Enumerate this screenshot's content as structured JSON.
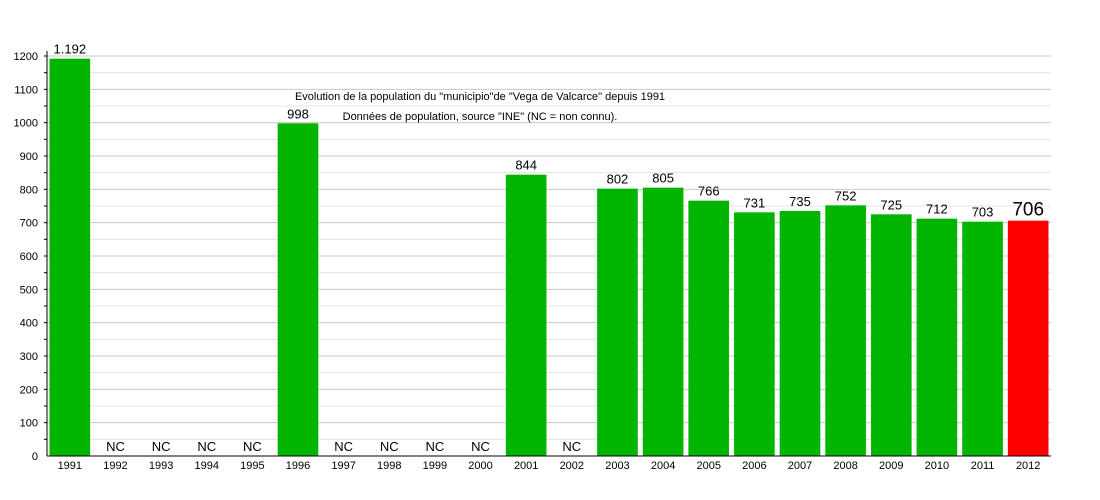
{
  "chart_data": {
    "type": "bar",
    "title": "Evolution de la population du \"municipio\"de \"Vega de Valcarce\" depuis 1991",
    "subtitle": "Données de population, source \"INE\" (NC = non connu).",
    "xlabel": "",
    "ylabel": "",
    "ylim": [
      0,
      1200
    ],
    "yticks": [
      0,
      100,
      200,
      300,
      400,
      500,
      600,
      700,
      800,
      900,
      1000,
      1100,
      1200
    ],
    "grid": true,
    "legend": "none",
    "categories": [
      "1991",
      "1992",
      "1993",
      "1994",
      "1995",
      "1996",
      "1997",
      "1998",
      "1999",
      "2000",
      "2001",
      "2002",
      "2003",
      "2004",
      "2005",
      "2006",
      "2007",
      "2008",
      "2009",
      "2010",
      "2011",
      "2012"
    ],
    "values": [
      1192,
      null,
      null,
      null,
      null,
      998,
      null,
      null,
      null,
      null,
      844,
      null,
      802,
      805,
      766,
      731,
      735,
      752,
      725,
      712,
      703,
      706
    ],
    "labels": [
      "1.192",
      "NC",
      "NC",
      "NC",
      "NC",
      "998",
      "NC",
      "NC",
      "NC",
      "NC",
      "844",
      "NC",
      "802",
      "805",
      "766",
      "731",
      "735",
      "752",
      "725",
      "712",
      "703",
      "706"
    ],
    "colors": {
      "bar": "#00b400",
      "highlight": "#ff0000",
      "grid": "#c8c8c8",
      "axis": "#000000"
    },
    "highlight_category": "2012"
  }
}
